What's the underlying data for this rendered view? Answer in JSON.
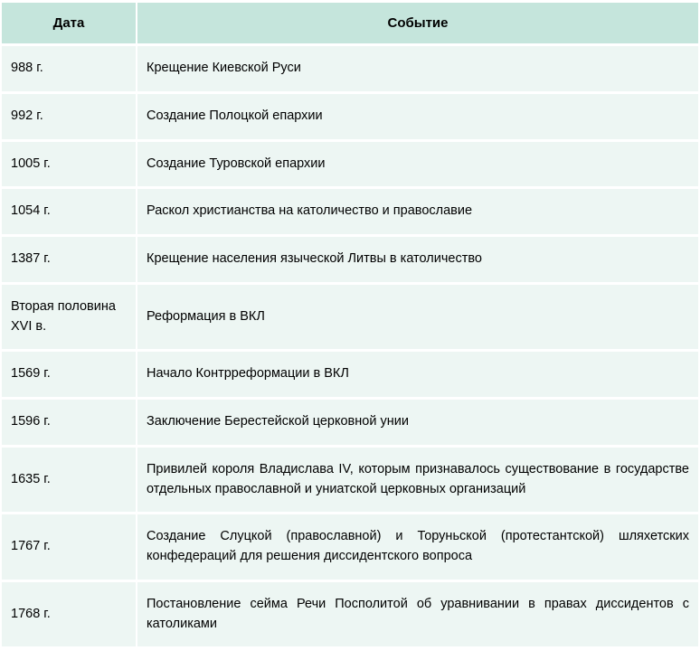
{
  "table": {
    "header_bg": "#c5e5dc",
    "row_bg": "#edf6f3",
    "spacing": "2px 3px",
    "columns": [
      {
        "label": "Дата",
        "width": 148
      },
      {
        "label": "Событие"
      }
    ],
    "rows": [
      {
        "date": "988 г.",
        "event": "Крещение Киевской Руси",
        "justify": false
      },
      {
        "date": "992 г.",
        "event": "Создание Полоцкой епархии",
        "justify": false
      },
      {
        "date": "1005 г.",
        "event": "Создание Туровской епархии",
        "justify": false
      },
      {
        "date": "1054 г.",
        "event": "Раскол христианства на католичество и православие",
        "justify": false
      },
      {
        "date": "1387 г.",
        "event": "Крещение населения языческой Литвы в католичество",
        "justify": false
      },
      {
        "date": "Вторая поло­вина XVI в.",
        "event": "Реформация в ВКЛ",
        "justify": false
      },
      {
        "date": "1569 г.",
        "event": "Начало Контрреформации в ВКЛ",
        "justify": false
      },
      {
        "date": "1596 г.",
        "event": "Заключение Берестейской церковной унии",
        "justify": false
      },
      {
        "date": "1635 г.",
        "event": "Привилей короля Владислава IV, которым признавалось существо­вание в государстве отдельных православной и униатской церковных организаций",
        "justify": true
      },
      {
        "date": "1767 г.",
        "event": "Создание Слуцкой (православной) и Торуньской (протестантской) шляхетских конфедераций для решения диссидентского вопроса",
        "justify": true
      },
      {
        "date": "1768 г.",
        "event": "Постановление сейма Речи Посполитой об уравнивании в правах диссидентов с католиками",
        "justify": true
      }
    ]
  }
}
